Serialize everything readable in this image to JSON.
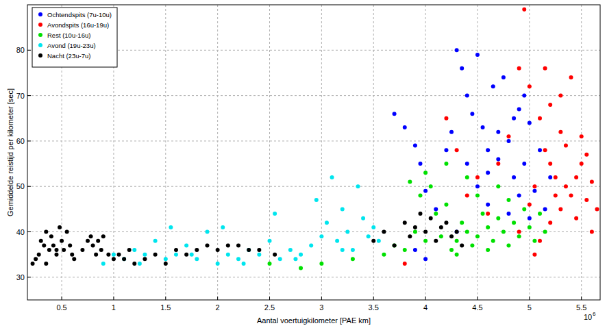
{
  "chart_data": {
    "type": "scatter",
    "x_label": "Aantal voertuigkilometer [PAE km]",
    "y_label": "Gemiddelde reistijd per kilometer [sec]",
    "x_multiplier": {
      "base": "10",
      "exponent": "6"
    },
    "xlim": [
      0.17,
      5.68
    ],
    "ylim": [
      25,
      90
    ],
    "xticks": [
      0.5,
      1,
      1.5,
      2,
      2.5,
      3,
      3.5,
      4,
      4.5,
      5,
      5.5
    ],
    "yticks": [
      30,
      40,
      50,
      60,
      70,
      80
    ],
    "grid": true,
    "legend": "upper left",
    "marker": "circle",
    "series": [
      {
        "name": "Ochtendspits (7u-10u)",
        "color": "#0000ff",
        "x": [
          3.7,
          3.8,
          3.9,
          3.95,
          4.0,
          4.1,
          4.2,
          4.25,
          4.3,
          4.35,
          4.4,
          4.45,
          4.5,
          4.55,
          4.6,
          4.65,
          4.7,
          4.75,
          4.8,
          4.85,
          4.9,
          4.95,
          5.0,
          5.05,
          5.1,
          5.15,
          5.2,
          4.5,
          4.6,
          4.8,
          4.9,
          4.4,
          4.7,
          5.0,
          4.3,
          4.0,
          3.9,
          4.6,
          4.85,
          4.95
        ],
        "values": [
          66,
          63,
          59,
          55,
          49,
          45,
          58,
          62,
          80,
          76,
          70,
          66,
          79,
          63,
          58,
          72,
          56,
          74,
          60,
          52,
          67,
          55,
          64,
          49,
          58,
          45,
          52,
          50,
          46,
          44,
          48,
          55,
          62,
          43,
          40,
          34,
          36,
          53,
          65,
          70
        ]
      },
      {
        "name": "Avondspits (16u-19u)",
        "color": "#ff0000",
        "x": [
          3.8,
          4.2,
          4.3,
          4.4,
          4.5,
          4.6,
          4.7,
          4.8,
          4.9,
          4.95,
          5.0,
          5.05,
          5.1,
          5.15,
          5.2,
          5.25,
          5.3,
          5.35,
          5.4,
          5.45,
          5.5,
          5.55,
          5.6,
          5.65,
          5.3,
          5.2,
          5.4,
          5.5,
          5.1,
          5.25,
          5.35,
          5.45,
          5.0,
          5.15,
          5.3,
          4.9,
          5.6,
          5.55,
          5.05,
          5.2
        ],
        "values": [
          33,
          65,
          58,
          48,
          52,
          44,
          55,
          61,
          76,
          89,
          72,
          50,
          65,
          76,
          55,
          48,
          70,
          59,
          74,
          52,
          61,
          47,
          51,
          45,
          45,
          42,
          48,
          55,
          38,
          52,
          50,
          43,
          46,
          58,
          62,
          40,
          40,
          57,
          35,
          68
        ]
      },
      {
        "name": "Rest (10u-16u)",
        "color": "#00e000",
        "x": [
          2.5,
          2.8,
          3.0,
          3.3,
          3.6,
          3.7,
          3.8,
          3.9,
          3.95,
          4.0,
          4.05,
          4.1,
          4.15,
          4.2,
          4.25,
          4.3,
          4.35,
          4.4,
          4.45,
          4.5,
          4.55,
          4.6,
          4.65,
          4.7,
          4.75,
          4.8,
          4.85,
          4.9,
          4.95,
          5.0,
          5.05,
          4.4,
          4.2,
          4.6,
          4.3,
          4.5,
          4.8,
          4.0,
          3.85,
          4.7,
          5.1,
          5.15
        ],
        "values": [
          33,
          32,
          33,
          34,
          35,
          37,
          36,
          40,
          48,
          38,
          50,
          44,
          39,
          46,
          36,
          38,
          42,
          40,
          37,
          39,
          44,
          41,
          38,
          43,
          40,
          47,
          42,
          39,
          45,
          41,
          38,
          52,
          55,
          36,
          35,
          48,
          37,
          53,
          51,
          50,
          44,
          40
        ]
      },
      {
        "name": "Avond (19u-23u)",
        "color": "#00e5ee",
        "x": [
          0.9,
          1.0,
          1.1,
          1.2,
          1.3,
          1.4,
          1.5,
          1.6,
          1.7,
          1.8,
          1.9,
          2.0,
          2.05,
          2.1,
          2.2,
          2.3,
          2.4,
          2.5,
          2.55,
          2.6,
          2.7,
          2.8,
          2.9,
          3.0,
          3.05,
          3.1,
          3.15,
          3.2,
          3.25,
          3.3,
          3.35,
          3.4,
          3.45,
          3.5,
          3.55,
          1.25,
          1.75,
          2.25,
          2.75,
          3.2,
          1.55,
          2.95
        ],
        "values": [
          33,
          35,
          34,
          36,
          35,
          38,
          34,
          35,
          37,
          34,
          40,
          33,
          41,
          35,
          34,
          36,
          35,
          38,
          44,
          34,
          36,
          35,
          37,
          39,
          42,
          52,
          38,
          45,
          40,
          36,
          50,
          43,
          39,
          41,
          38,
          33,
          35,
          33,
          34,
          36,
          41,
          47
        ]
      },
      {
        "name": "Nacht (23u-7u)",
        "color": "#000000",
        "x": [
          0.22,
          0.28,
          0.3,
          0.33,
          0.35,
          0.38,
          0.4,
          0.42,
          0.45,
          0.48,
          0.5,
          0.52,
          0.55,
          0.58,
          0.6,
          0.62,
          0.7,
          0.75,
          0.78,
          0.8,
          0.83,
          0.85,
          0.88,
          0.9,
          0.95,
          1.0,
          1.05,
          1.1,
          1.15,
          1.2,
          1.3,
          1.4,
          1.5,
          1.6,
          1.7,
          1.8,
          1.9,
          2.0,
          2.1,
          2.2,
          2.3,
          2.4,
          2.55,
          3.5,
          3.6,
          3.7,
          3.8,
          3.85,
          3.9,
          3.95,
          4.0,
          4.05,
          4.1,
          4.15,
          4.2,
          4.25,
          4.3,
          4.35,
          0.25,
          0.45,
          0.35
        ],
        "values": [
          33,
          35,
          38,
          37,
          40,
          36,
          39,
          37,
          35,
          41,
          38,
          36,
          40,
          37,
          35,
          34,
          36,
          38,
          39,
          37,
          35,
          38,
          36,
          39,
          35,
          34,
          35,
          34,
          36,
          33,
          34,
          35,
          33,
          36,
          35,
          36,
          37,
          36,
          37,
          37,
          36,
          36,
          35,
          38,
          40,
          37,
          42,
          39,
          41,
          44,
          40,
          43,
          38,
          41,
          42,
          39,
          40,
          37,
          34,
          36,
          33
        ]
      }
    ]
  }
}
